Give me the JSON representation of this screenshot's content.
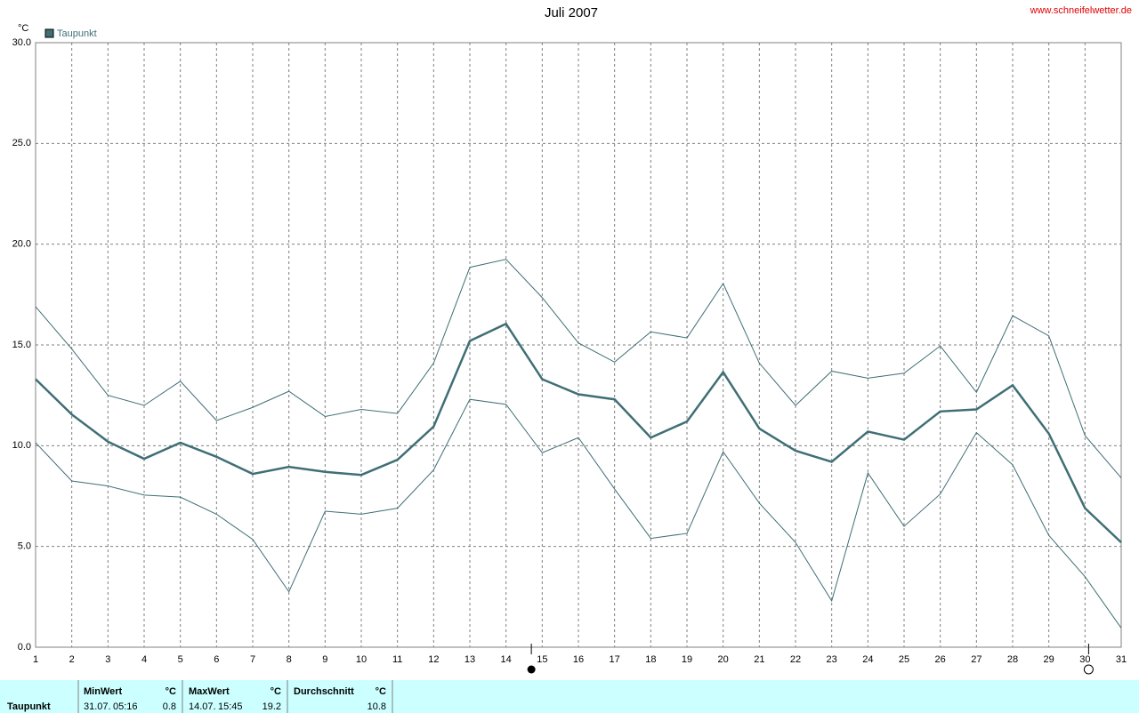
{
  "chart_data": {
    "type": "line",
    "title": "Juli 2007",
    "source": "www.schneifelwetter.de",
    "y_unit": "°C",
    "x": [
      1,
      2,
      3,
      4,
      5,
      6,
      7,
      8,
      9,
      10,
      11,
      12,
      13,
      14,
      15,
      16,
      17,
      18,
      19,
      20,
      21,
      22,
      23,
      24,
      25,
      26,
      27,
      28,
      29,
      30,
      31
    ],
    "xlim": [
      1,
      31
    ],
    "xticks": [
      1,
      2,
      3,
      4,
      5,
      6,
      7,
      8,
      9,
      10,
      11,
      12,
      13,
      14,
      15,
      16,
      17,
      18,
      19,
      20,
      21,
      22,
      23,
      24,
      25,
      26,
      27,
      28,
      29,
      30,
      31
    ],
    "ylim": [
      0,
      30
    ],
    "yticks": [
      {
        "value": 0,
        "label": "0.0"
      },
      {
        "value": 5,
        "label": "5.0"
      },
      {
        "value": 10,
        "label": "10.0"
      },
      {
        "value": 15,
        "label": "15.0"
      },
      {
        "value": 20,
        "label": "20.0"
      },
      {
        "value": 25,
        "label": "25.0"
      },
      {
        "value": 30,
        "label": "30.0"
      }
    ],
    "grid": true,
    "legend": "top-left",
    "series": [
      {
        "name": "Taupunkt",
        "color": "#3f6f75",
        "values": [
          13.3,
          11.55,
          10.2,
          9.35,
          10.15,
          9.45,
          8.6,
          8.95,
          8.7,
          8.55,
          9.3,
          10.95,
          15.2,
          16.05,
          13.3,
          12.55,
          12.3,
          10.4,
          11.2,
          13.65,
          10.85,
          9.75,
          9.2,
          10.7,
          10.3,
          11.7,
          11.8,
          13.0,
          10.6,
          6.9,
          5.2
        ]
      },
      {
        "color": "#3f6f75",
        "values": [
          16.9,
          14.8,
          12.5,
          12.0,
          13.2,
          11.25,
          11.9,
          12.7,
          11.45,
          11.8,
          11.6,
          14.1,
          18.85,
          19.25,
          17.35,
          15.1,
          14.15,
          15.65,
          15.35,
          18.05,
          14.1,
          12.0,
          13.7,
          13.35,
          13.6,
          14.95,
          12.65,
          16.45,
          15.45,
          10.5,
          8.4
        ]
      },
      {
        "color": "#3f6f75",
        "values": [
          10.15,
          8.25,
          8.0,
          7.55,
          7.45,
          6.6,
          5.35,
          2.75,
          6.75,
          6.6,
          6.9,
          8.8,
          12.3,
          12.05,
          9.65,
          10.4,
          7.85,
          5.4,
          5.65,
          9.7,
          7.15,
          5.2,
          2.3,
          8.65,
          6.0,
          7.6,
          10.65,
          9.05,
          5.55,
          3.5,
          0.95
        ]
      }
    ],
    "full_moon_x": 14.7,
    "new_moon_x": 30.1
  },
  "stats": {
    "label": "Taupunkt",
    "unit": "°C",
    "min": {
      "header": "MinWert",
      "date": "31.07.",
      "time": "05:16",
      "value": 0.8
    },
    "max": {
      "header": "MaxWert",
      "date": "14.07.",
      "time": "15:45",
      "value": 19.2
    },
    "mean": {
      "header": "Durchschnitt",
      "value": 10.8
    }
  }
}
